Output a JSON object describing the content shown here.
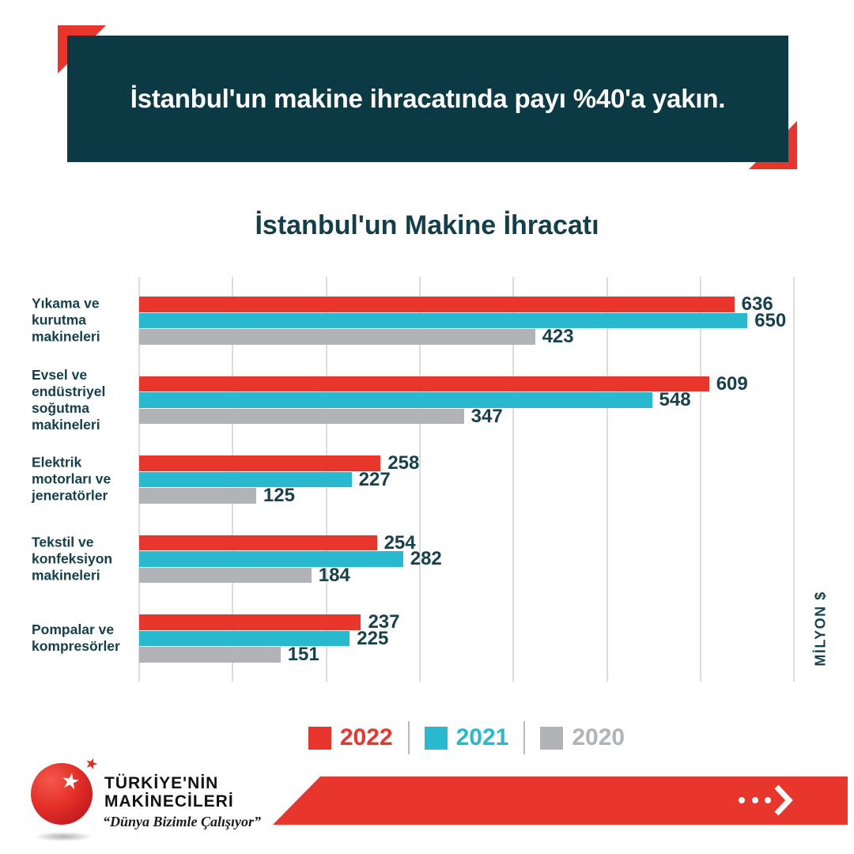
{
  "header": {
    "banner_text": "İstanbul'un makine ihracatında payı %40'a yakın."
  },
  "chart_data": {
    "type": "bar",
    "orientation": "horizontal",
    "title": "İstanbul'un Makine İhracatı",
    "unit_label": "MİLYON $",
    "categories": [
      "Yıkama ve\nkurutma\nmakineleri",
      "Evsel ve\nendüstriyel\nsoğutma\nmakineleri",
      "Elektrik\nmotorları ve\njeneratörler",
      "Tekstil ve\nkonfeksiyon\nmakineleri",
      "Pompalar ve\nkompresörler"
    ],
    "series": [
      {
        "name": "2022",
        "color": "#E8362C",
        "values": [
          636,
          609,
          258,
          254,
          237
        ]
      },
      {
        "name": "2021",
        "color": "#29B9CF",
        "values": [
          650,
          548,
          227,
          282,
          225
        ]
      },
      {
        "name": "2020",
        "color": "#B1B3B6",
        "values": [
          423,
          347,
          125,
          184,
          151
        ]
      }
    ],
    "xlim": [
      0,
      700
    ],
    "grid_step": 100,
    "grid": true,
    "value_labels": true,
    "legend_position": "bottom"
  },
  "footer": {
    "logo_line1": "TÜRKİYE'NİN",
    "logo_line2": "MAKİNECİLERİ",
    "logo_tagline": "“Dünya Bizimle Çalışıyor”",
    "star_glyph": "★"
  },
  "colors": {
    "accent_red": "#E8362C",
    "banner_bg": "#0C3A44",
    "text_dark_teal": "#123F4A",
    "grid_line": "#DCDCDC",
    "legend_separator": "#B7B9BB"
  }
}
